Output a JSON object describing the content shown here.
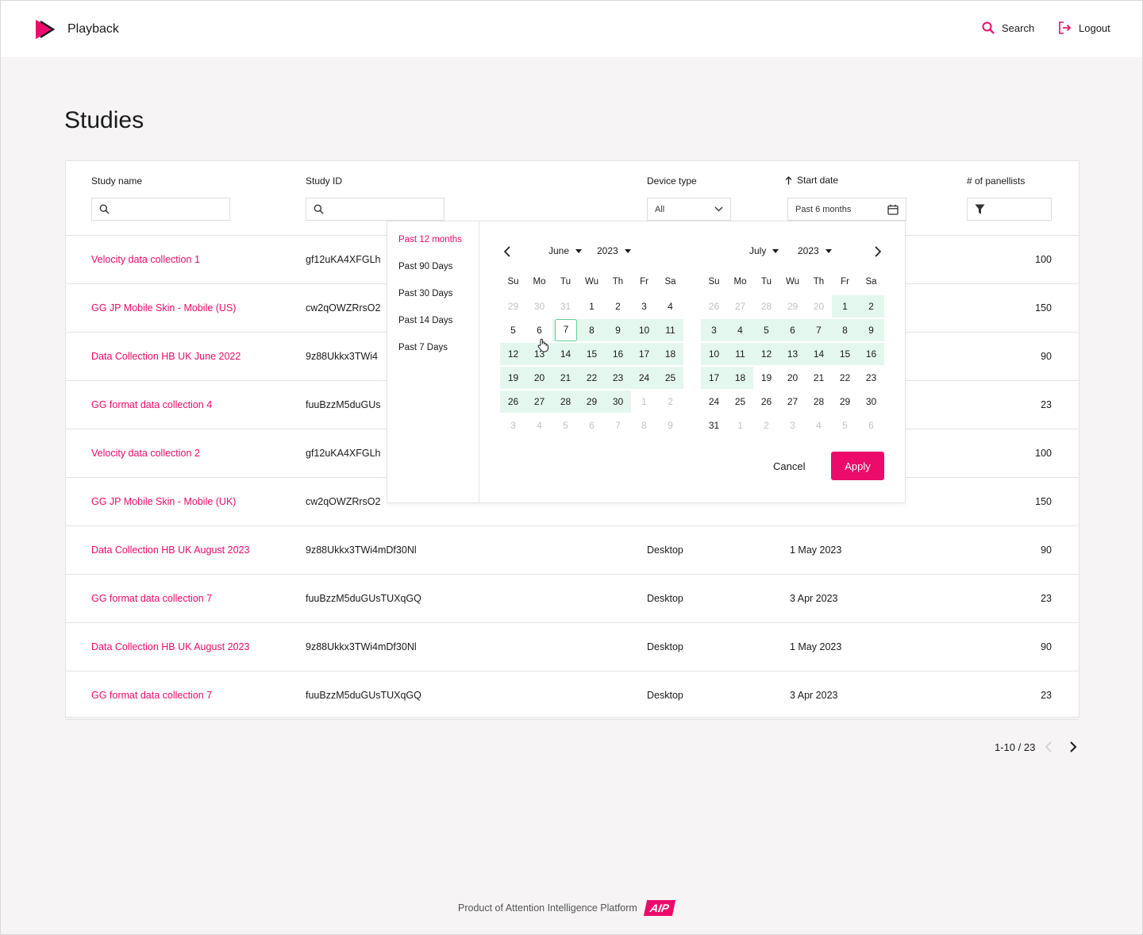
{
  "header": {
    "brand": "Playback",
    "search_label": "Search",
    "logout_label": "Logout",
    "accent_color": "#ec0b6b"
  },
  "page": {
    "title": "Studies"
  },
  "columns": {
    "study_name": "Study name",
    "study_id": "Study ID",
    "device_type": "Device type",
    "start_date": "Start date",
    "panellists": "# of panellists"
  },
  "filters": {
    "study_name_value": "",
    "study_id_value": "",
    "device_type_value": "All",
    "start_date_value": "Past 6 months",
    "sort": "ascending"
  },
  "rows": [
    {
      "name": "Velocity data collection 1",
      "id": "gf12uKA4XFGLh",
      "device": "",
      "date": "",
      "panellists": "100"
    },
    {
      "name": "GG JP Mobile Skin - Mobile (US)",
      "id": "cw2qOWZRrsO2",
      "device": "",
      "date": "",
      "panellists": "150"
    },
    {
      "name": "Data Collection HB UK June 2022",
      "id": "9z88Ukkx3TWi4",
      "device": "",
      "date": "",
      "panellists": "90"
    },
    {
      "name": "GG format data collection 4",
      "id": "fuuBzzM5duGUs",
      "device": "",
      "date": "",
      "panellists": "23"
    },
    {
      "name": "Velocity data collection 2",
      "id": "gf12uKA4XFGLh",
      "device": "",
      "date": "",
      "panellists": "100"
    },
    {
      "name": "GG JP Mobile Skin - Mobile (UK)",
      "id": "cw2qOWZRrsO2",
      "device": "",
      "date": "",
      "panellists": "150"
    },
    {
      "name": "Data Collection HB UK August 2023",
      "id": "9z88Ukkx3TWi4mDf30Nl",
      "device": "Desktop",
      "date": "1 May 2023",
      "panellists": "90"
    },
    {
      "name": "GG format data collection 7",
      "id": "fuuBzzM5duGUsTUXqGQ",
      "device": "Desktop",
      "date": "3 Apr 2023",
      "panellists": "23"
    },
    {
      "name": "Data Collection HB UK August 2023",
      "id": "9z88Ukkx3TWi4mDf30Nl",
      "device": "Desktop",
      "date": "1 May 2023",
      "panellists": "90"
    },
    {
      "name": "GG format data collection 7",
      "id": "fuuBzzM5duGUsTUXqGQ",
      "device": "Desktop",
      "date": "3 Apr 2023",
      "panellists": "23"
    }
  ],
  "pagination": {
    "label": "1-10 / 23"
  },
  "datepicker": {
    "presets": [
      "Past 12 months",
      "Past 90 Days",
      "Past 30 Days",
      "Past 14 Days",
      "Past 7 Days"
    ],
    "active_preset": 0,
    "weekdays": [
      "Su",
      "Mo",
      "Tu",
      "Wu",
      "Th",
      "Fr",
      "Sa"
    ],
    "range_color": "#e4f7ee",
    "start_border_color": "#5ccf97",
    "cancel_label": "Cancel",
    "apply_label": "Apply",
    "calendars": [
      {
        "month": "June",
        "year": "2023",
        "weeks": [
          [
            {
              "d": "29",
              "m": true
            },
            {
              "d": "30",
              "m": true
            },
            {
              "d": "31",
              "m": true
            },
            {
              "d": "1"
            },
            {
              "d": "2"
            },
            {
              "d": "3"
            },
            {
              "d": "4"
            }
          ],
          [
            {
              "d": "5"
            },
            {
              "d": "6"
            },
            {
              "d": "7",
              "s": true
            },
            {
              "d": "8",
              "r": true
            },
            {
              "d": "9",
              "r": true
            },
            {
              "d": "10",
              "r": true
            },
            {
              "d": "11",
              "r": true
            }
          ],
          [
            {
              "d": "12",
              "r": true
            },
            {
              "d": "13",
              "r": true
            },
            {
              "d": "14",
              "r": true
            },
            {
              "d": "15",
              "r": true
            },
            {
              "d": "16",
              "r": true
            },
            {
              "d": "17",
              "r": true
            },
            {
              "d": "18",
              "r": true
            }
          ],
          [
            {
              "d": "19",
              "r": true
            },
            {
              "d": "20",
              "r": true
            },
            {
              "d": "21",
              "r": true
            },
            {
              "d": "22",
              "r": true
            },
            {
              "d": "23",
              "r": true
            },
            {
              "d": "24",
              "r": true
            },
            {
              "d": "25",
              "r": true
            }
          ],
          [
            {
              "d": "26",
              "r": true
            },
            {
              "d": "27",
              "r": true
            },
            {
              "d": "28",
              "r": true
            },
            {
              "d": "29",
              "r": true
            },
            {
              "d": "30",
              "r": true
            },
            {
              "d": "1",
              "m": true
            },
            {
              "d": "2",
              "m": true
            }
          ],
          [
            {
              "d": "3",
              "m": true
            },
            {
              "d": "4",
              "m": true
            },
            {
              "d": "5",
              "m": true
            },
            {
              "d": "6",
              "m": true
            },
            {
              "d": "7",
              "m": true
            },
            {
              "d": "8",
              "m": true
            },
            {
              "d": "9",
              "m": true
            }
          ]
        ]
      },
      {
        "month": "July",
        "year": "2023",
        "weeks": [
          [
            {
              "d": "26",
              "m": true
            },
            {
              "d": "27",
              "m": true
            },
            {
              "d": "28",
              "m": true
            },
            {
              "d": "29",
              "m": true
            },
            {
              "d": "20",
              "m": true
            },
            {
              "d": "1",
              "r": true
            },
            {
              "d": "2",
              "r": true
            }
          ],
          [
            {
              "d": "3",
              "r": true
            },
            {
              "d": "4",
              "r": true
            },
            {
              "d": "5",
              "r": true
            },
            {
              "d": "6",
              "r": true
            },
            {
              "d": "7",
              "r": true
            },
            {
              "d": "8",
              "r": true
            },
            {
              "d": "9",
              "r": true
            }
          ],
          [
            {
              "d": "10",
              "r": true
            },
            {
              "d": "11",
              "r": true
            },
            {
              "d": "12",
              "r": true
            },
            {
              "d": "13",
              "r": true
            },
            {
              "d": "14",
              "r": true
            },
            {
              "d": "15",
              "r": true
            },
            {
              "d": "16",
              "r": true
            }
          ],
          [
            {
              "d": "17",
              "r": true
            },
            {
              "d": "18",
              "r": true
            },
            {
              "d": "19"
            },
            {
              "d": "20"
            },
            {
              "d": "21"
            },
            {
              "d": "22"
            },
            {
              "d": "23"
            }
          ],
          [
            {
              "d": "24"
            },
            {
              "d": "25"
            },
            {
              "d": "26"
            },
            {
              "d": "27"
            },
            {
              "d": "28"
            },
            {
              "d": "29"
            },
            {
              "d": "30"
            }
          ],
          [
            {
              "d": "31"
            },
            {
              "d": "1",
              "m": true
            },
            {
              "d": "2",
              "m": true
            },
            {
              "d": "3",
              "m": true
            },
            {
              "d": "4",
              "m": true
            },
            {
              "d": "5",
              "m": true
            },
            {
              "d": "6",
              "m": true
            }
          ]
        ]
      }
    ]
  },
  "footer": {
    "text": "Product of Attention Intelligence Platform",
    "logo_text": "AIP"
  }
}
